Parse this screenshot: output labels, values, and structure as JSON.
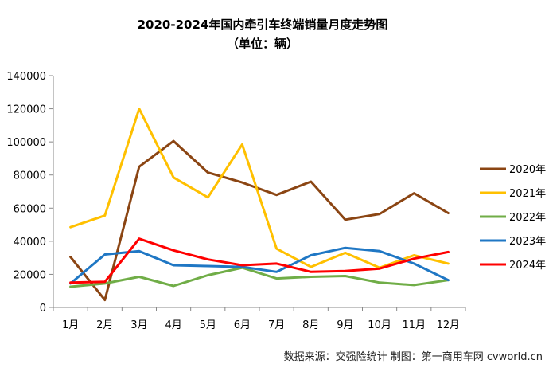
{
  "chart_data": {
    "type": "line",
    "title": "2020-2024年国内牵引车终端销量月度走势图",
    "subtitle": "（单位：辆）",
    "categories": [
      "1月",
      "2月",
      "3月",
      "4月",
      "5月",
      "6月",
      "7月",
      "8月",
      "9月",
      "10月",
      "11月",
      "12月"
    ],
    "ylim": [
      0,
      140000
    ],
    "yticks": [
      0,
      20000,
      40000,
      60000,
      80000,
      100000,
      120000,
      140000
    ],
    "grid": false,
    "legend_position": "right",
    "series": [
      {
        "name": "2020年",
        "color": "#8B4513",
        "values": [
          30500,
          4500,
          85000,
          100500,
          81500,
          75500,
          68000,
          76000,
          53000,
          56500,
          69000,
          57000
        ]
      },
      {
        "name": "2021年",
        "color": "#FFC000",
        "values": [
          48500,
          55500,
          120000,
          78500,
          66500,
          98500,
          35500,
          24500,
          33000,
          24000,
          31500,
          26500
        ]
      },
      {
        "name": "2022年",
        "color": "#70AD47",
        "values": [
          12500,
          14500,
          18500,
          13000,
          19500,
          24000,
          17500,
          18500,
          19000,
          15000,
          13500,
          16500
        ]
      },
      {
        "name": "2023年",
        "color": "#1F77C4",
        "values": [
          14500,
          32000,
          34000,
          25500,
          25000,
          24500,
          21500,
          31500,
          36000,
          34000,
          26500,
          16500
        ]
      },
      {
        "name": "2024年",
        "color": "#FF0000",
        "values": [
          15000,
          15500,
          41500,
          34500,
          29000,
          25500,
          26500,
          21500,
          22000,
          23500,
          29500,
          33500
        ]
      }
    ],
    "source": "数据来源：交强险统计   制图：第一商用车网 cvworld.cn"
  }
}
